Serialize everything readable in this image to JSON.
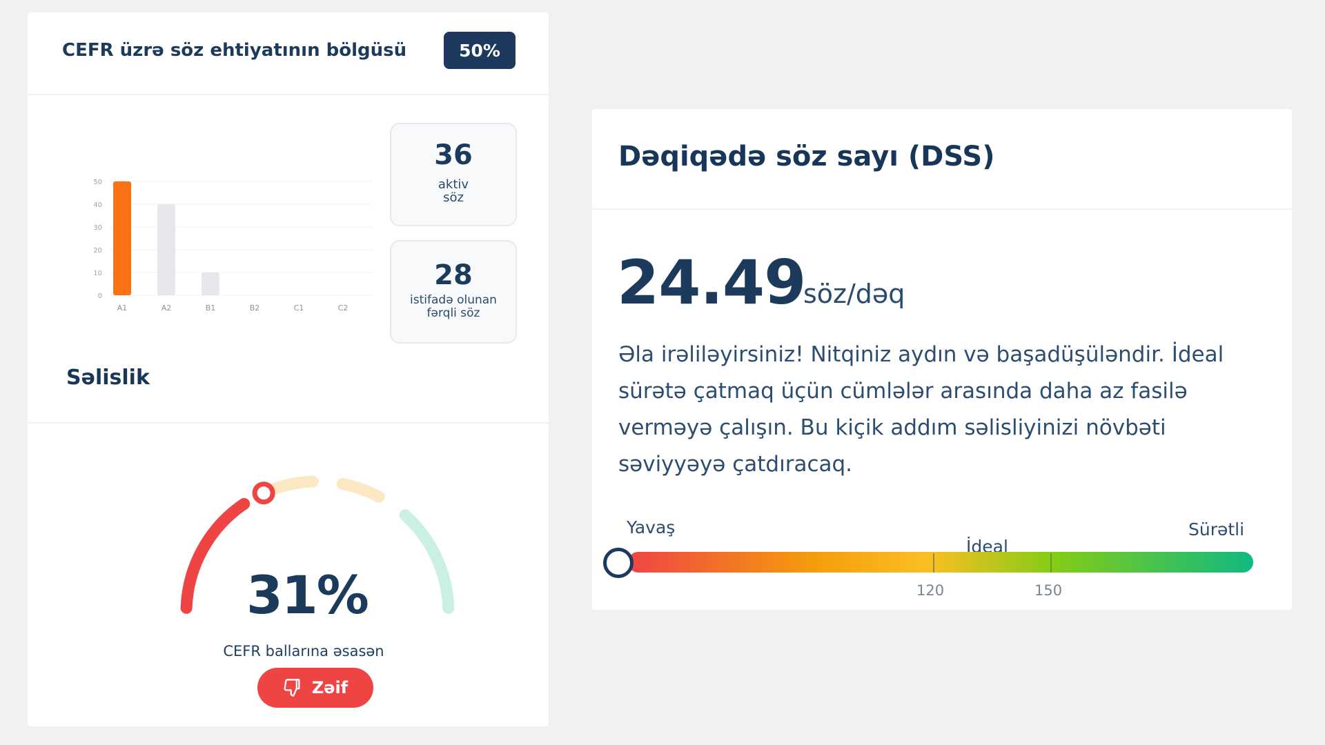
{
  "vocab_card": {
    "title": "CEFR üzrə söz ehtiyatının bölgüsü",
    "badge": "50%",
    "active_words": {
      "value": "36",
      "label_line1": "aktiv",
      "label_line2": "söz"
    },
    "distinct_words": {
      "value": "28",
      "label_line1": "istifadə olunan",
      "label_line2": "fərqli söz"
    }
  },
  "chart_data": {
    "type": "bar",
    "categories": [
      "A1",
      "A2",
      "B1",
      "B2",
      "C1",
      "C2"
    ],
    "values": [
      50,
      40,
      10,
      0,
      0,
      0
    ],
    "ylim": [
      0,
      50
    ],
    "yticks": [
      0,
      10,
      20,
      30,
      40,
      50
    ],
    "highlight_color": "#f97316",
    "muted_color": "#e5e7eb",
    "grid": true
  },
  "fluency": {
    "title": "Səlislik",
    "percent": "31%",
    "percent_value": 31,
    "caption": "CEFR ballarına əsasən",
    "rating": "Zəif",
    "rating_icon": "thumbs-down-icon",
    "rating_color": "#ef4444",
    "gauge_colors": [
      "#ef4444",
      "#fde8c4",
      "#fde8c4",
      "#c9f0e0"
    ]
  },
  "wpm_card": {
    "title": "Dəqiqədə söz sayı (DSS)",
    "value": "24.49",
    "value_number": 24.49,
    "unit": "söz/dəq",
    "feedback": "Əla irəliləyirsiniz! Nitqiniz aydın və başadüşüləndir. İdeal sürətə çatmaq üçün cümlələr arasında daha az fasilə verməyə çalışın. Bu kiçik addım səlisliyinizi növbəti səviyyəyə çatdıracaq.",
    "scale": {
      "slow_label": "Yavaş",
      "ideal_label": "İdeal",
      "fast_label": "Sürətli",
      "tick_120": "120",
      "tick_150": "150"
    }
  }
}
